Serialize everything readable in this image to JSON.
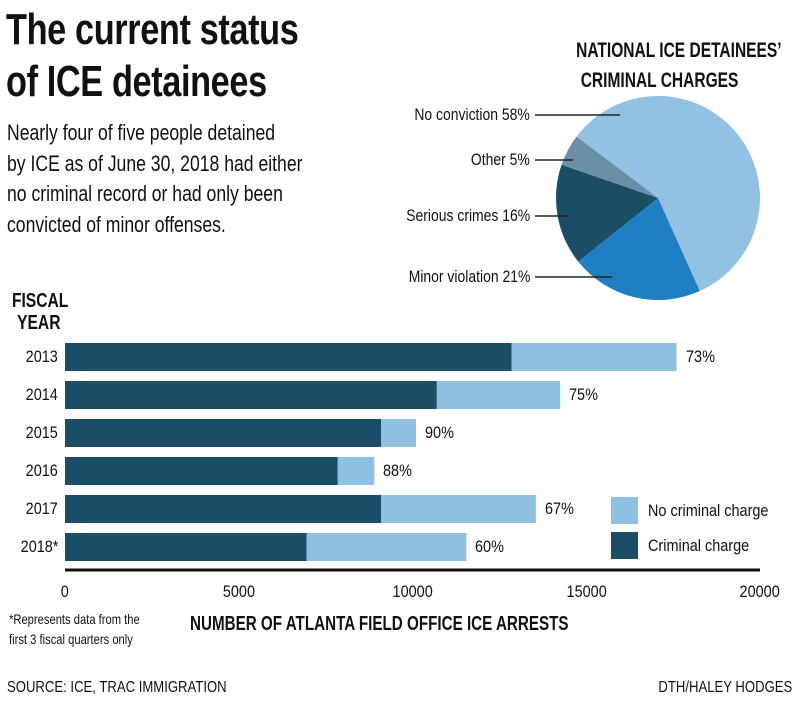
{
  "headline": {
    "title_line1": "The current status",
    "title_line2": "of ICE detainees",
    "dek_lines": [
      "Nearly four of five people detained",
      "by ICE as of June 30, 2018 had either",
      "no criminal record or had only been",
      "convicted of minor offenses."
    ]
  },
  "colors": {
    "criminal_charge": "#1b4d66",
    "no_criminal_charge": "#8fc0e2",
    "pie_no_conviction": "#92c1e4",
    "pie_minor_violation": "#1e7fc3",
    "pie_serious_crimes": "#1b4d66",
    "pie_other": "#6b8fa6",
    "axis": "#111111"
  },
  "chart_data": [
    {
      "type": "pie",
      "title": "NATIONAL ICE DETAINEES' CRIMINAL CHARGES",
      "title_lines": [
        "NATIONAL ICE DETAINEES’",
        "CRIMINAL CHARGES"
      ],
      "slices": [
        {
          "label": "No conviction",
          "value": 58,
          "display": "No conviction 58%"
        },
        {
          "label": "Minor violation",
          "value": 21,
          "display": "Minor violation 21%"
        },
        {
          "label": "Serious crimes",
          "value": 16,
          "display": "Serious crimes 16%"
        },
        {
          "label": "Other",
          "value": 5,
          "display": "Other 5%"
        }
      ],
      "unit": "%"
    },
    {
      "type": "bar",
      "orientation": "horizontal",
      "stacked": true,
      "title": "",
      "ylabel_lines": [
        "FISCAL",
        "YEAR"
      ],
      "xlabel": "NUMBER OF ATLANTA FIELD OFFICE ICE ARRESTS",
      "categories": [
        "2013",
        "2014",
        "2015",
        "2016",
        "2017",
        "2018*"
      ],
      "series": [
        {
          "name": "Criminal charge",
          "values": [
            12850,
            10700,
            9100,
            7850,
            9100,
            6950
          ]
        },
        {
          "name": "No criminal charge",
          "values": [
            4750,
            3550,
            1000,
            1050,
            4450,
            4600
          ]
        }
      ],
      "data_labels": [
        "73%",
        "75%",
        "90%",
        "88%",
        "67%",
        "60%"
      ],
      "xlim": [
        0,
        20000
      ],
      "xticks": [
        "0",
        "5000",
        "10000",
        "15000",
        "20000"
      ],
      "xtick_values": [
        0,
        5000,
        10000,
        15000,
        20000
      ],
      "legend": {
        "placement": "bottom-right",
        "entries": [
          "No criminal charge",
          "Criminal charge"
        ]
      },
      "grid": false
    }
  ],
  "footnote_lines": [
    "*Represents data from the",
    "first 3 fiscal quarters only"
  ],
  "source": "SOURCE: ICE, TRAC IMMIGRATION",
  "credit": "DTH/HALEY HODGES"
}
